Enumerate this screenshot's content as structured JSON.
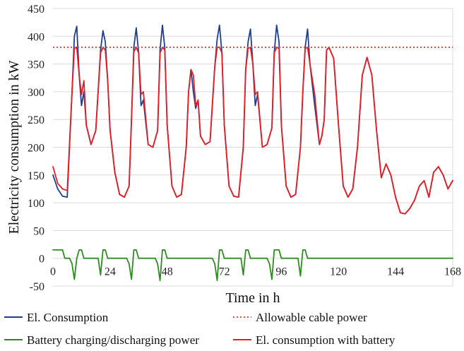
{
  "chart_data": {
    "type": "line",
    "xlabel": "Time in h",
    "ylabel": "Electricity consumption in kW",
    "xlim": [
      0,
      168
    ],
    "ylim": [
      -50,
      450
    ],
    "xticks": [
      0,
      24,
      48,
      72,
      96,
      120,
      144,
      168
    ],
    "yticks": [
      -50,
      0,
      50,
      100,
      150,
      200,
      250,
      300,
      350,
      400,
      450
    ],
    "grid": "horizontal",
    "legend_position": "bottom",
    "series": [
      {
        "name": "El. Consumption",
        "color": "#1f3e8c",
        "style": "solid",
        "x": [
          0,
          2,
          4,
          6,
          8,
          9,
          10,
          11,
          12,
          13,
          14,
          16,
          18,
          20,
          21,
          22,
          23,
          24,
          26,
          28,
          30,
          32,
          33,
          34,
          35,
          36,
          37,
          38,
          40,
          42,
          44,
          45,
          46,
          47,
          48,
          50,
          52,
          54,
          56,
          57,
          58,
          59,
          60,
          61,
          62,
          64,
          66,
          68,
          69,
          70,
          71,
          72,
          74,
          76,
          78,
          80,
          81,
          82,
          83,
          84,
          85,
          86,
          88,
          90,
          92,
          93,
          94,
          95,
          96,
          98,
          100,
          102,
          104,
          105,
          106,
          107,
          108,
          110,
          112,
          113,
          114,
          115,
          116,
          118,
          120,
          122,
          124,
          126,
          128,
          130,
          132,
          134,
          136,
          138,
          140,
          142,
          144,
          146,
          148,
          150,
          152,
          154,
          156,
          158,
          160,
          162,
          164,
          166,
          168
        ],
        "values": [
          150,
          125,
          112,
          110,
          300,
          400,
          418,
          330,
          275,
          300,
          240,
          205,
          230,
          375,
          410,
          390,
          320,
          230,
          155,
          115,
          110,
          130,
          250,
          380,
          415,
          370,
          275,
          285,
          205,
          200,
          230,
          375,
          420,
          380,
          240,
          130,
          110,
          115,
          200,
          300,
          340,
          300,
          270,
          285,
          220,
          205,
          210,
          345,
          395,
          420,
          370,
          240,
          130,
          112,
          110,
          200,
          340,
          390,
          413,
          350,
          275,
          295,
          200,
          205,
          235,
          370,
          420,
          390,
          240,
          130,
          110,
          115,
          200,
          300,
          380,
          413,
          350,
          275,
          205,
          220,
          250,
          375,
          380,
          360,
          240,
          130,
          110,
          125,
          200,
          330,
          362,
          330,
          230,
          145,
          170,
          150,
          110,
          82,
          80,
          90,
          105,
          130,
          140,
          110,
          155,
          165,
          150,
          125,
          140
        ]
      },
      {
        "name": "Allowable cable power",
        "color": "#e8474a",
        "style": "dotted",
        "x": [
          0,
          168
        ],
        "values": [
          380,
          380
        ]
      },
      {
        "name": "Battery charging/discharging power",
        "color": "#2e8b22",
        "style": "solid",
        "x": [
          0,
          4,
          5,
          6,
          7,
          8,
          9,
          10,
          11,
          12,
          13,
          19,
          20,
          21,
          22,
          23,
          24,
          31,
          32,
          33,
          34,
          35,
          36,
          43,
          44,
          45,
          46,
          47,
          48,
          67,
          68,
          69,
          70,
          71,
          72,
          79,
          80,
          81,
          82,
          83,
          84,
          90,
          91,
          92,
          93,
          94,
          95,
          96,
          103,
          104,
          105,
          106,
          107,
          108,
          168
        ],
        "values": [
          15,
          15,
          0,
          0,
          0,
          -10,
          -38,
          0,
          15,
          15,
          0,
          0,
          -30,
          15,
          15,
          0,
          0,
          0,
          -10,
          -38,
          15,
          15,
          0,
          0,
          -10,
          -40,
          15,
          15,
          0,
          0,
          -10,
          -40,
          15,
          15,
          0,
          0,
          -30,
          15,
          15,
          0,
          0,
          0,
          -10,
          -38,
          15,
          15,
          15,
          0,
          0,
          -32,
          15,
          15,
          0,
          0,
          0
        ]
      },
      {
        "name": "El. consumption with battery",
        "color": "#e81e25",
        "style": "solid",
        "x": [
          0,
          2,
          4,
          6,
          8,
          9,
          10,
          11,
          12,
          13,
          14,
          16,
          18,
          20,
          21,
          22,
          23,
          24,
          26,
          28,
          30,
          32,
          33,
          34,
          35,
          36,
          37,
          38,
          40,
          42,
          44,
          45,
          46,
          47,
          48,
          50,
          52,
          54,
          56,
          57,
          58,
          59,
          60,
          61,
          62,
          64,
          66,
          68,
          69,
          70,
          71,
          72,
          74,
          76,
          78,
          80,
          81,
          82,
          83,
          84,
          85,
          86,
          88,
          90,
          92,
          93,
          94,
          95,
          96,
          98,
          100,
          102,
          104,
          105,
          106,
          107,
          108,
          110,
          112,
          113,
          114,
          115,
          116,
          118,
          120,
          122,
          124,
          126,
          128,
          130,
          132,
          134,
          136,
          138,
          140,
          142,
          144,
          146,
          148,
          150,
          152,
          154,
          156,
          158,
          160,
          162,
          164,
          166,
          168
        ],
        "values": [
          165,
          135,
          125,
          122,
          300,
          378,
          380,
          330,
          295,
          320,
          240,
          205,
          230,
          370,
          380,
          375,
          320,
          230,
          155,
          115,
          110,
          130,
          250,
          372,
          380,
          370,
          295,
          300,
          205,
          200,
          230,
          370,
          380,
          375,
          240,
          130,
          110,
          115,
          200,
          300,
          340,
          330,
          275,
          285,
          220,
          205,
          210,
          345,
          380,
          380,
          370,
          240,
          130,
          112,
          110,
          200,
          340,
          378,
          380,
          350,
          295,
          300,
          200,
          205,
          235,
          370,
          380,
          378,
          240,
          130,
          110,
          115,
          200,
          300,
          378,
          380,
          350,
          295,
          205,
          220,
          250,
          375,
          380,
          360,
          240,
          130,
          110,
          125,
          200,
          330,
          362,
          330,
          230,
          145,
          170,
          150,
          110,
          82,
          80,
          90,
          105,
          130,
          140,
          110,
          155,
          165,
          150,
          125,
          140
        ]
      }
    ]
  }
}
